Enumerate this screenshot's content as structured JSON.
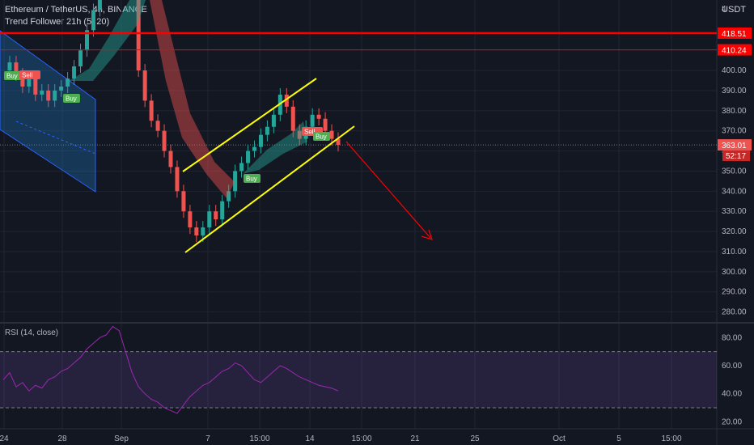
{
  "header": {
    "symbol_line": "Ethereum / TetherUS, 4h, BINANCE",
    "indicator": "Trend Follower 21h (5, 20)",
    "currency": "USDT"
  },
  "price_axis": {
    "top_partial": "4",
    "ticks": [
      "400.00",
      "390.00",
      "380.00",
      "370.00",
      "360.00",
      "350.00",
      "340.00",
      "330.00",
      "320.00",
      "310.00",
      "300.00",
      "290.00",
      "280.00"
    ]
  },
  "horizontal_levels": [
    {
      "price": 418.51,
      "label": "418.51"
    },
    {
      "price": 410.24,
      "label": "410.24"
    }
  ],
  "current_price": {
    "price": 363.01,
    "label": "363.01",
    "countdown": "52:17"
  },
  "rsi": {
    "title": "RSI (14, close)",
    "ticks": [
      "80.00",
      "60.00",
      "40.00",
      "20.00"
    ],
    "upper_band": 70,
    "lower_band": 30
  },
  "time_axis": {
    "labels": [
      "24",
      "28",
      "Sep",
      "7",
      "15:00",
      "14",
      "15:00",
      "21",
      "25",
      "Oct",
      "5",
      "15:00"
    ]
  },
  "signals": [
    {
      "label": "Buy",
      "type": "buy"
    },
    {
      "label": "Sell",
      "type": "sell"
    },
    {
      "label": "Buy",
      "type": "buy"
    },
    {
      "label": "Buy",
      "type": "buy"
    },
    {
      "label": "Sell",
      "type": "sell"
    },
    {
      "label": "Buy",
      "type": "buy"
    }
  ],
  "colors": {
    "background": "#131722",
    "up": "#26a69a",
    "down": "#ef5350",
    "level": "#ff0000",
    "channel": "#ffff00",
    "rsi_line": "#9c27b0",
    "rsi_fill": "#7e57c2",
    "grid": "#1f2433"
  },
  "chart_data": {
    "type": "line",
    "title": "Ethereum / TetherUS, 4h, BINANCE",
    "price_range": [
      275,
      435
    ],
    "rsi_range": [
      15,
      90
    ],
    "x_labels": [
      "24",
      "28",
      "Sep",
      "7",
      "15:00",
      "14",
      "15:00",
      "21",
      "25",
      "Oct",
      "5",
      "15:00"
    ],
    "price_series": [
      400,
      404,
      398,
      392,
      396,
      388,
      390,
      385,
      390,
      392,
      396,
      402,
      410,
      420,
      430,
      440,
      446,
      450,
      470,
      470,
      440,
      400,
      385,
      375,
      370,
      360,
      352,
      340,
      330,
      322,
      318,
      322,
      330,
      326,
      335,
      340,
      350,
      354,
      360,
      362,
      368,
      372,
      378,
      388,
      382,
      370,
      366,
      372,
      378,
      376,
      370,
      366,
      363
    ],
    "rsi_series": [
      50,
      55,
      45,
      48,
      42,
      46,
      44,
      50,
      52,
      56,
      58,
      62,
      66,
      72,
      76,
      80,
      82,
      88,
      85,
      70,
      55,
      45,
      40,
      36,
      34,
      30,
      28,
      26,
      32,
      38,
      42,
      46,
      48,
      52,
      56,
      58,
      62,
      60,
      55,
      50,
      48,
      52,
      56,
      60,
      58,
      55,
      52,
      50,
      48,
      46,
      45,
      44,
      42
    ]
  }
}
